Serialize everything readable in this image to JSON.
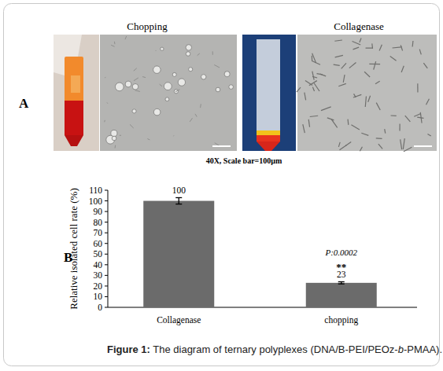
{
  "panel_a": {
    "label": "A",
    "titles": [
      "Chopping",
      "Collagenase"
    ],
    "magnification": "40X, Scale bar=100µm"
  },
  "panel_b": {
    "label": "B"
  },
  "chart_data": {
    "type": "bar",
    "categories": [
      "Collagenase",
      "chopping"
    ],
    "values": [
      100,
      23
    ],
    "errors": [
      3,
      1
    ],
    "color": "#6b6b6b",
    "y_label": "Relative isolated cell  rate (%)",
    "ylim": [
      0,
      110
    ],
    "yticks": [
      0,
      10,
      20,
      30,
      40,
      50,
      60,
      70,
      80,
      90,
      100,
      110
    ],
    "data_labels": true,
    "annotations": [
      "P:0.0002",
      "**"
    ],
    "grid": false
  },
  "caption": {
    "label": "Figure 1:",
    "parts": [
      "The diagram of ternary polyplexes (DNA/B-PEI/PEOz-",
      "b",
      "-PMAA)."
    ]
  }
}
